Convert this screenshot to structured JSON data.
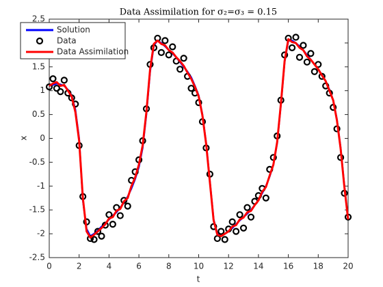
{
  "chart_data": {
    "type": "line",
    "title": "Data Assimilation for σ₂=σ₃ = 0.15",
    "x_label": "t",
    "y_label": "x",
    "x": [
      0,
      0.25,
      0.5,
      0.75,
      1,
      1.25,
      1.5,
      1.75,
      2,
      2.25,
      2.5,
      2.75,
      3,
      3.25,
      3.5,
      3.75,
      4,
      4.25,
      4.5,
      4.75,
      5,
      5.25,
      5.5,
      5.75,
      6,
      6.25,
      6.5,
      6.75,
      7,
      7.25,
      7.5,
      7.75,
      8,
      8.25,
      8.5,
      8.75,
      9,
      9.25,
      9.5,
      9.75,
      10,
      10.25,
      10.5,
      10.75,
      11,
      11.25,
      11.5,
      11.75,
      12,
      12.25,
      12.5,
      12.75,
      13,
      13.25,
      13.5,
      13.75,
      14,
      14.25,
      14.5,
      14.75,
      15,
      15.25,
      15.5,
      15.75,
      16,
      16.25,
      16.5,
      16.75,
      17,
      17.25,
      17.5,
      17.75,
      18,
      18.25,
      18.5,
      18.75,
      19,
      19.25,
      19.5,
      19.75,
      20
    ],
    "series": [
      {
        "name": "Solution",
        "color": "#0000ff",
        "mode": "line",
        "values": [
          1.1,
          1.12,
          1.15,
          1.13,
          1.1,
          1.02,
          0.9,
          0.6,
          0,
          -1.3,
          -1.9,
          -2.05,
          -2,
          -1.93,
          -1.85,
          -1.78,
          -1.7,
          -1.62,
          -1.55,
          -1.45,
          -1.35,
          -1.22,
          -1.05,
          -0.85,
          -0.6,
          -0.2,
          0.5,
          1.4,
          1.95,
          2.05,
          2,
          1.93,
          1.85,
          1.78,
          1.7,
          1.6,
          1.5,
          1.4,
          1.28,
          1.1,
          0.9,
          0.5,
          -0.1,
          -0.9,
          -1.7,
          -2,
          -2.05,
          -2,
          -1.95,
          -1.88,
          -1.8,
          -1.72,
          -1.65,
          -1.58,
          -1.5,
          -1.4,
          -1.3,
          -1.15,
          -1,
          -0.8,
          -0.55,
          -0.1,
          0.7,
          1.6,
          2.05,
          2.05,
          2,
          1.93,
          1.85,
          1.75,
          1.65,
          1.55,
          1.45,
          1.33,
          1.2,
          1.02,
          0.8,
          0.4,
          -0.2,
          -1,
          -1.7
        ]
      },
      {
        "name": "Data",
        "color": "#000000",
        "mode": "marker",
        "values": [
          1.08,
          1.25,
          1.05,
          0.98,
          1.22,
          0.95,
          0.85,
          0.72,
          -0.15,
          -1.22,
          -1.75,
          -2.1,
          -2.12,
          -1.95,
          -2.05,
          -1.82,
          -1.6,
          -1.8,
          -1.45,
          -1.62,
          -1.3,
          -1.42,
          -0.88,
          -0.7,
          -0.45,
          -0.05,
          0.62,
          1.55,
          1.9,
          2.1,
          1.8,
          2.05,
          1.75,
          1.92,
          1.62,
          1.45,
          1.68,
          1.3,
          1.05,
          0.95,
          0.75,
          0.35,
          -0.2,
          -0.75,
          -1.85,
          -2.1,
          -1.95,
          -2.12,
          -1.9,
          -1.75,
          -1.95,
          -1.6,
          -1.88,
          -1.45,
          -1.65,
          -1.32,
          -1.2,
          -1.05,
          -1.25,
          -0.65,
          -0.4,
          0.05,
          0.8,
          1.75,
          2.1,
          1.9,
          2.12,
          1.7,
          1.95,
          1.6,
          1.78,
          1.4,
          1.55,
          1.3,
          1.1,
          0.95,
          0.65,
          0.2,
          -0.4,
          -1.15,
          -1.65
        ]
      },
      {
        "name": "Data Assimilation",
        "color": "#ff0000",
        "mode": "line",
        "values": [
          1.1,
          1.15,
          1.18,
          1.1,
          1.12,
          1,
          0.88,
          0.55,
          -0.05,
          -1.25,
          -1.95,
          -2.08,
          -2.02,
          -1.95,
          -1.88,
          -1.8,
          -1.68,
          -1.65,
          -1.52,
          -1.48,
          -1.32,
          -1.25,
          -1,
          -0.82,
          -0.55,
          -0.15,
          0.55,
          1.45,
          1.98,
          2.05,
          1.98,
          1.95,
          1.85,
          1.8,
          1.7,
          1.62,
          1.52,
          1.38,
          1.25,
          1.08,
          0.88,
          0.48,
          -0.12,
          -0.92,
          -1.72,
          -2.02,
          -2.05,
          -2,
          -1.95,
          -1.85,
          -1.82,
          -1.7,
          -1.66,
          -1.55,
          -1.52,
          -1.4,
          -1.3,
          -1.12,
          -1.02,
          -0.78,
          -0.55,
          -0.08,
          0.72,
          1.62,
          2.08,
          2.02,
          2,
          1.9,
          1.85,
          1.72,
          1.65,
          1.55,
          1.45,
          1.32,
          1.2,
          1,
          0.8,
          0.38,
          -0.22,
          -1.02,
          -1.7
        ]
      }
    ],
    "xlim": [
      0,
      20
    ],
    "xticks": [
      0,
      2,
      4,
      6,
      8,
      10,
      12,
      14,
      16,
      18,
      20
    ],
    "ylim": [
      -2.5,
      2.5
    ],
    "yticks": [
      -2.5,
      -2,
      -1.5,
      -1,
      -0.5,
      0,
      0.5,
      1,
      1.5,
      2,
      2.5
    ],
    "legend": "top-left"
  }
}
